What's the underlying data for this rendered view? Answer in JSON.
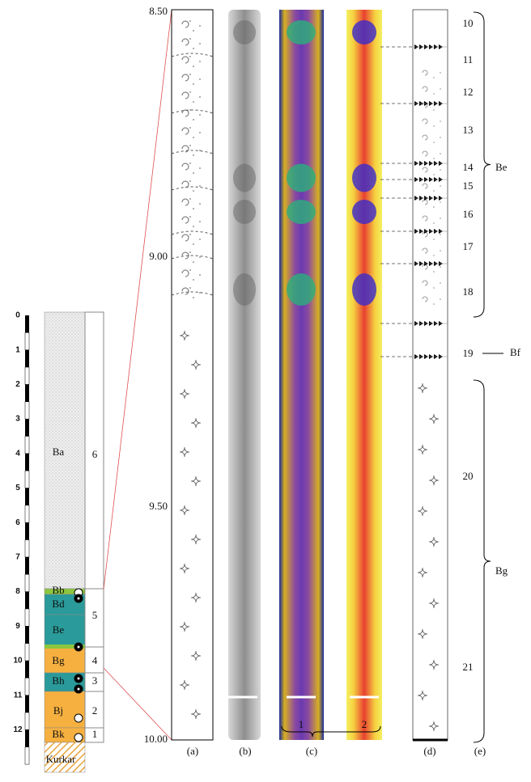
{
  "scale": {
    "ticks": [
      "0",
      "1",
      "2",
      "3",
      "4",
      "5",
      "6",
      "7",
      "8",
      "9",
      "10",
      "11",
      "12"
    ]
  },
  "column": {
    "units": [
      "Ba",
      "Bb",
      "Bd",
      "Be",
      "Bg",
      "Bh",
      "Bj",
      "Bk",
      "Kurkar"
    ],
    "numbers": [
      "6",
      "5",
      "4",
      "3",
      "2",
      "1"
    ]
  },
  "depths": [
    "8.50",
    "9.00",
    "9.50",
    "10.00"
  ],
  "layers": [
    "10",
    "11",
    "12",
    "13",
    "14",
    "15",
    "16",
    "17",
    "18",
    "19",
    "20",
    "21"
  ],
  "groups": [
    "Be",
    "Bf",
    "Bg"
  ],
  "panels": [
    "(a)",
    "(b)",
    "(c)",
    "(d)",
    "(e)"
  ],
  "sub_panels": [
    "1",
    "2"
  ]
}
